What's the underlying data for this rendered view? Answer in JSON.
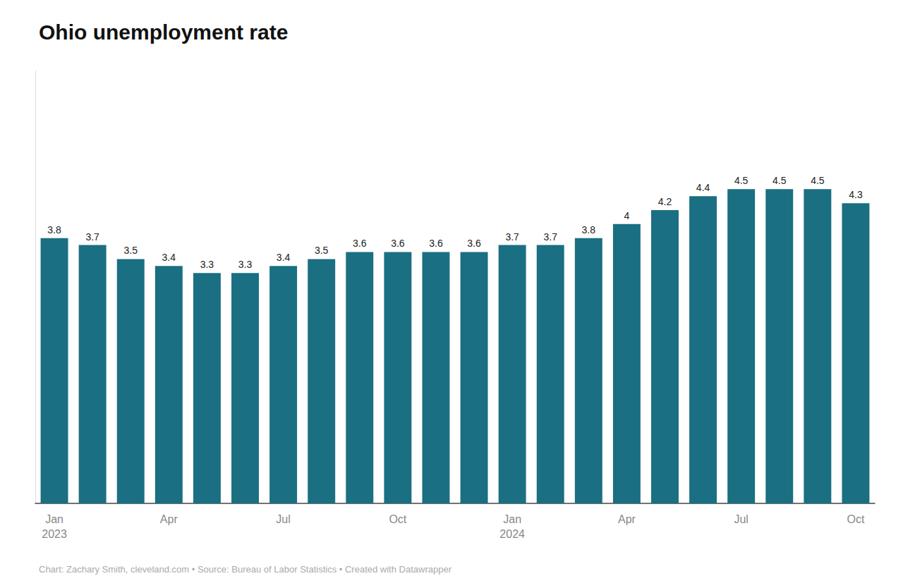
{
  "chart_data": {
    "type": "bar",
    "title": "Ohio unemployment rate",
    "categories": [
      "Jan\n2023",
      null,
      null,
      "Apr",
      null,
      null,
      "Jul",
      null,
      null,
      "Oct",
      null,
      null,
      "Jan\n2024",
      null,
      null,
      "Apr",
      null,
      null,
      "Jul",
      null,
      null,
      "Oct"
    ],
    "values": [
      3.8,
      3.7,
      3.5,
      3.4,
      3.3,
      3.3,
      3.4,
      3.5,
      3.6,
      3.6,
      3.6,
      3.6,
      3.7,
      3.7,
      3.8,
      4.0,
      4.2,
      4.4,
      4.5,
      4.5,
      4.5,
      4.3
    ],
    "color": "#1a6f82",
    "ylim": [
      0,
      6.2
    ],
    "grid": false,
    "data_labels": true,
    "tick_labels": "x",
    "annotations": [
      "Chart: Zachary Smith, cleveland.com • Source: Bureau of Labor Statistics • Created with Datawrapper"
    ]
  }
}
